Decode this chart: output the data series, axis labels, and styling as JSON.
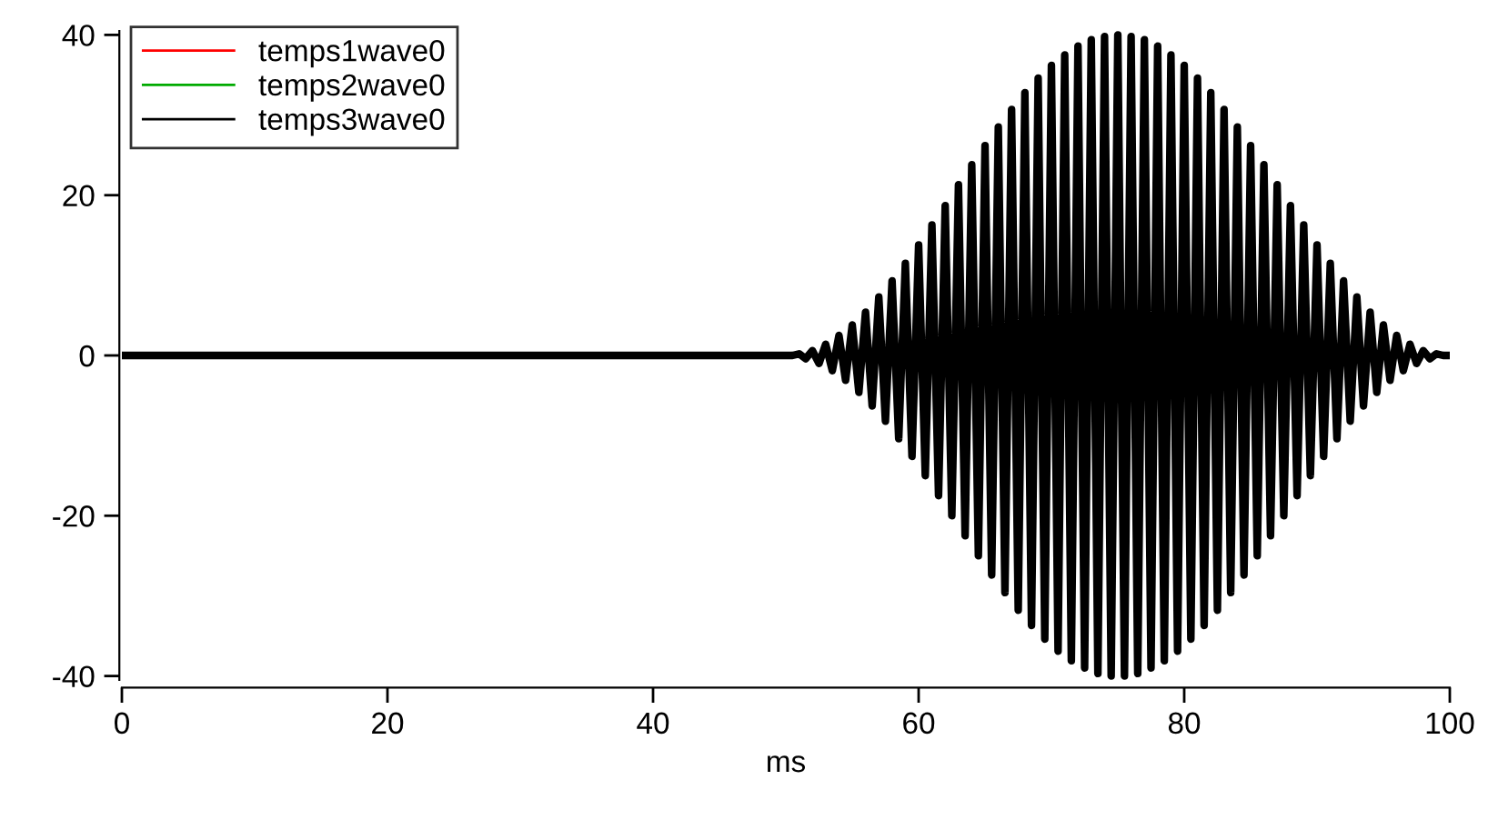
{
  "chart_data": {
    "type": "line",
    "xlabel": "ms",
    "x": [
      0,
      50,
      50.5,
      51,
      51.5,
      52,
      52.5,
      53,
      53.5,
      54,
      54.5,
      55,
      55.5,
      56,
      56.5,
      57,
      57.5,
      58,
      58.5,
      59,
      59.5,
      60,
      60.5,
      61,
      61.5,
      62,
      62.5,
      63,
      63.5,
      64,
      64.5,
      65,
      65.5,
      66,
      66.5,
      67,
      67.5,
      68,
      68.5,
      69,
      69.5,
      70,
      70.5,
      71,
      71.5,
      72,
      72.5,
      73,
      73.5,
      74,
      74.5,
      75,
      75.5,
      76,
      76.5,
      77,
      77.5,
      78,
      78.5,
      79,
      79.5,
      80,
      80.5,
      81,
      81.5,
      82,
      82.5,
      83,
      83.5,
      84,
      84.5,
      85,
      85.5,
      86,
      86.5,
      87,
      87.5,
      88,
      88.5,
      89,
      89.5,
      90,
      90.5,
      91,
      91.5,
      92,
      92.5,
      93,
      93.5,
      94,
      94.5,
      95,
      95.5,
      96,
      96.5,
      97,
      97.5,
      98,
      98.5,
      99,
      99.5,
      100
    ],
    "series": [
      {
        "name": "temps1wave0",
        "color": "#ff0000",
        "values": [
          null,
          null,
          null,
          null,
          null,
          null,
          null,
          null,
          null,
          null,
          null,
          null,
          null,
          null,
          null,
          null,
          null,
          null,
          null,
          null,
          null,
          null,
          null,
          null,
          null,
          null,
          null,
          null,
          null,
          null,
          null,
          null,
          null,
          null,
          null,
          null,
          null,
          null,
          null,
          null,
          null,
          null,
          null,
          null,
          null,
          null,
          null,
          null,
          null,
          null,
          null,
          null,
          null,
          null,
          null,
          null,
          null,
          null,
          null,
          null,
          null,
          null,
          null,
          null,
          null,
          null,
          null,
          null,
          null,
          null,
          null,
          null,
          null,
          null,
          null,
          null,
          null,
          null,
          null,
          null,
          null,
          null,
          null,
          null,
          null,
          null,
          null,
          null,
          null,
          null,
          null,
          null,
          null,
          null,
          null,
          null,
          null,
          null,
          null,
          null,
          null,
          null
        ]
      },
      {
        "name": "temps2wave0",
        "color": "#00aa00",
        "values": [
          null,
          null,
          null,
          null,
          null,
          null,
          null,
          null,
          null,
          null,
          null,
          null,
          null,
          null,
          null,
          null,
          null,
          null,
          null,
          null,
          null,
          null,
          null,
          null,
          null,
          null,
          null,
          null,
          null,
          null,
          null,
          null,
          null,
          null,
          null,
          null,
          null,
          null,
          null,
          null,
          null,
          null,
          null,
          null,
          null,
          null,
          null,
          null,
          null,
          null,
          null,
          null,
          null,
          null,
          null,
          null,
          null,
          null,
          null,
          null,
          null,
          null,
          null,
          null,
          null,
          null,
          null,
          null,
          null,
          null,
          null,
          null,
          null,
          null,
          null,
          null,
          null,
          null,
          null,
          null,
          null,
          null,
          null,
          null,
          null,
          null,
          null,
          null,
          null,
          null,
          null,
          null,
          null,
          null,
          null,
          null,
          null,
          null,
          null,
          null,
          null,
          null
        ]
      },
      {
        "name": "temps3wave0",
        "color": "#000000",
        "values": [
          0,
          0,
          0,
          0.2,
          -0.4,
          0.6,
          -1.0,
          1.4,
          -1.9,
          2.5,
          -3.1,
          3.8,
          -4.6,
          5.4,
          -6.3,
          7.3,
          -8.2,
          9.3,
          -10.4,
          11.5,
          -12.6,
          13.8,
          -15.0,
          16.3,
          -17.5,
          18.7,
          -20.0,
          21.3,
          -22.5,
          23.8,
          -25.0,
          26.2,
          -27.4,
          28.5,
          -29.6,
          30.7,
          -31.8,
          32.8,
          -33.7,
          34.6,
          -35.4,
          36.2,
          -36.9,
          37.5,
          -38.1,
          38.6,
          -39.0,
          39.4,
          -39.7,
          39.8,
          -40.0,
          40.0,
          -40.0,
          39.8,
          -39.7,
          39.4,
          -39.0,
          38.6,
          -38.1,
          37.5,
          -36.9,
          36.2,
          -35.4,
          34.6,
          -33.7,
          32.8,
          -31.8,
          30.7,
          -29.6,
          28.5,
          -27.4,
          26.2,
          -25.0,
          23.8,
          -22.5,
          21.3,
          -20.0,
          18.7,
          -17.5,
          16.3,
          -15.0,
          13.8,
          -12.6,
          11.5,
          -10.4,
          9.3,
          -8.2,
          7.3,
          -6.3,
          5.4,
          -4.6,
          3.8,
          -3.1,
          2.5,
          -1.9,
          1.4,
          -1.0,
          0.6,
          -0.4,
          0.2,
          0,
          0
        ]
      }
    ],
    "xlim": [
      0,
      100
    ],
    "xticks": [
      0,
      20,
      40,
      60,
      80,
      100
    ],
    "ylim": [
      -40.5,
      40.5
    ],
    "yticks": [
      -40,
      -20,
      0,
      20,
      40
    ],
    "grid": false,
    "legend": "top left",
    "marker": "none",
    "line_style": "solid"
  }
}
